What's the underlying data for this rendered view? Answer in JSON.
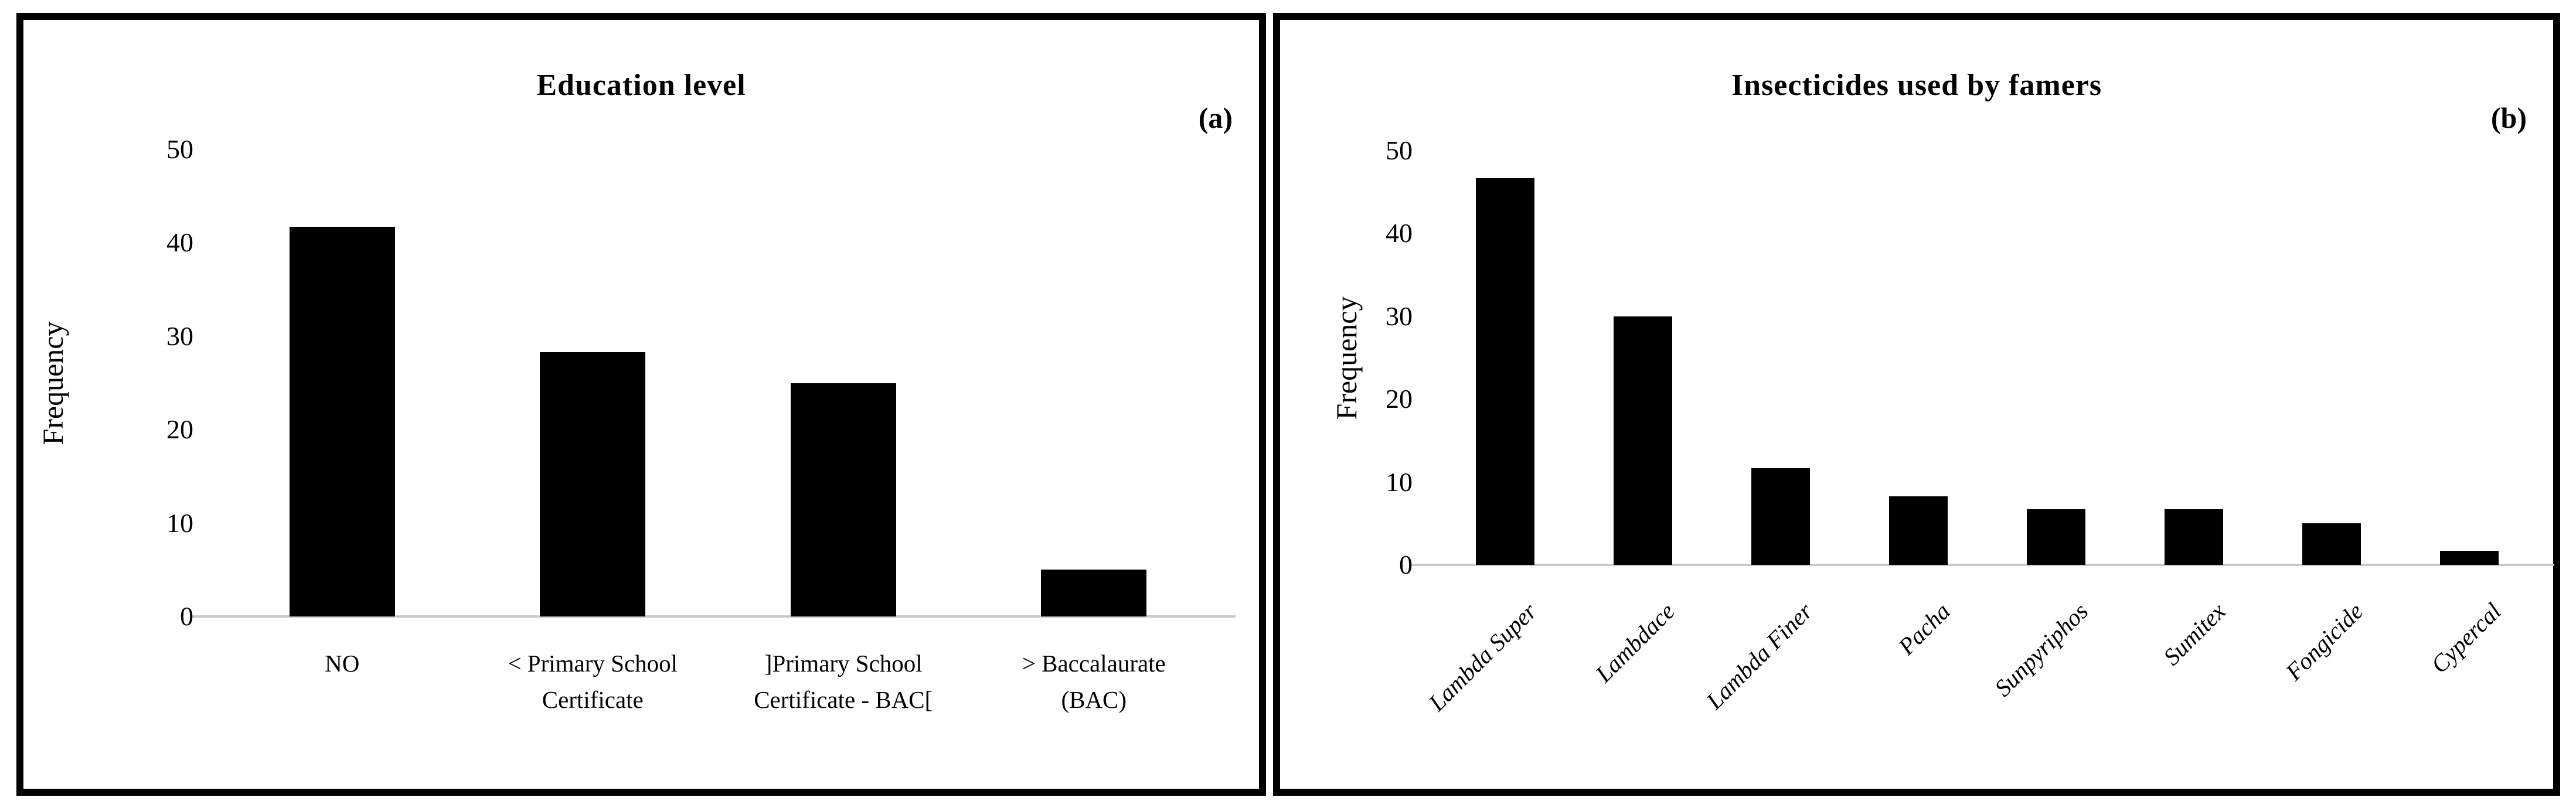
{
  "figure": {
    "background_color": "#ffffff",
    "panel_border_color": "#000000",
    "bar_color": "#000000",
    "axis_line_color": "#c9c9c9",
    "text_color": "#000000"
  },
  "chart_data": [
    {
      "type": "bar",
      "panel_label": "(a)",
      "title": "Education level",
      "xlabel": "",
      "ylabel": "Frequency",
      "ylim": [
        0,
        50
      ],
      "yticks": [
        0,
        10,
        20,
        30,
        40,
        50
      ],
      "grid": false,
      "legend": false,
      "bar_color": "#000000",
      "x_tick_label_rotation_deg": 0,
      "categories": [
        "NO",
        "< Primary School\nCertificate",
        "]Primary School\nCertificate - BAC[",
        "> Baccalaurate\n(BAC)"
      ],
      "values": [
        41.7,
        28.3,
        25,
        5
      ]
    },
    {
      "type": "bar",
      "panel_label": "(b)",
      "title": "Insecticides used by famers",
      "xlabel": "",
      "ylabel": "Frequency",
      "ylim": [
        0,
        50
      ],
      "yticks": [
        0,
        10,
        20,
        30,
        40,
        50
      ],
      "grid": false,
      "legend": false,
      "bar_color": "#000000",
      "x_tick_label_rotation_deg": 45,
      "x_tick_label_style": "italic",
      "categories": [
        "Lambda Super",
        "Lambdace",
        "Lambda Finer",
        "Pacha",
        "Sunpyriphos",
        "Sumitex",
        "Fongicide",
        "Cypercal"
      ],
      "values": [
        46.7,
        30,
        11.7,
        8.3,
        6.7,
        6.7,
        5,
        1.7
      ]
    }
  ]
}
